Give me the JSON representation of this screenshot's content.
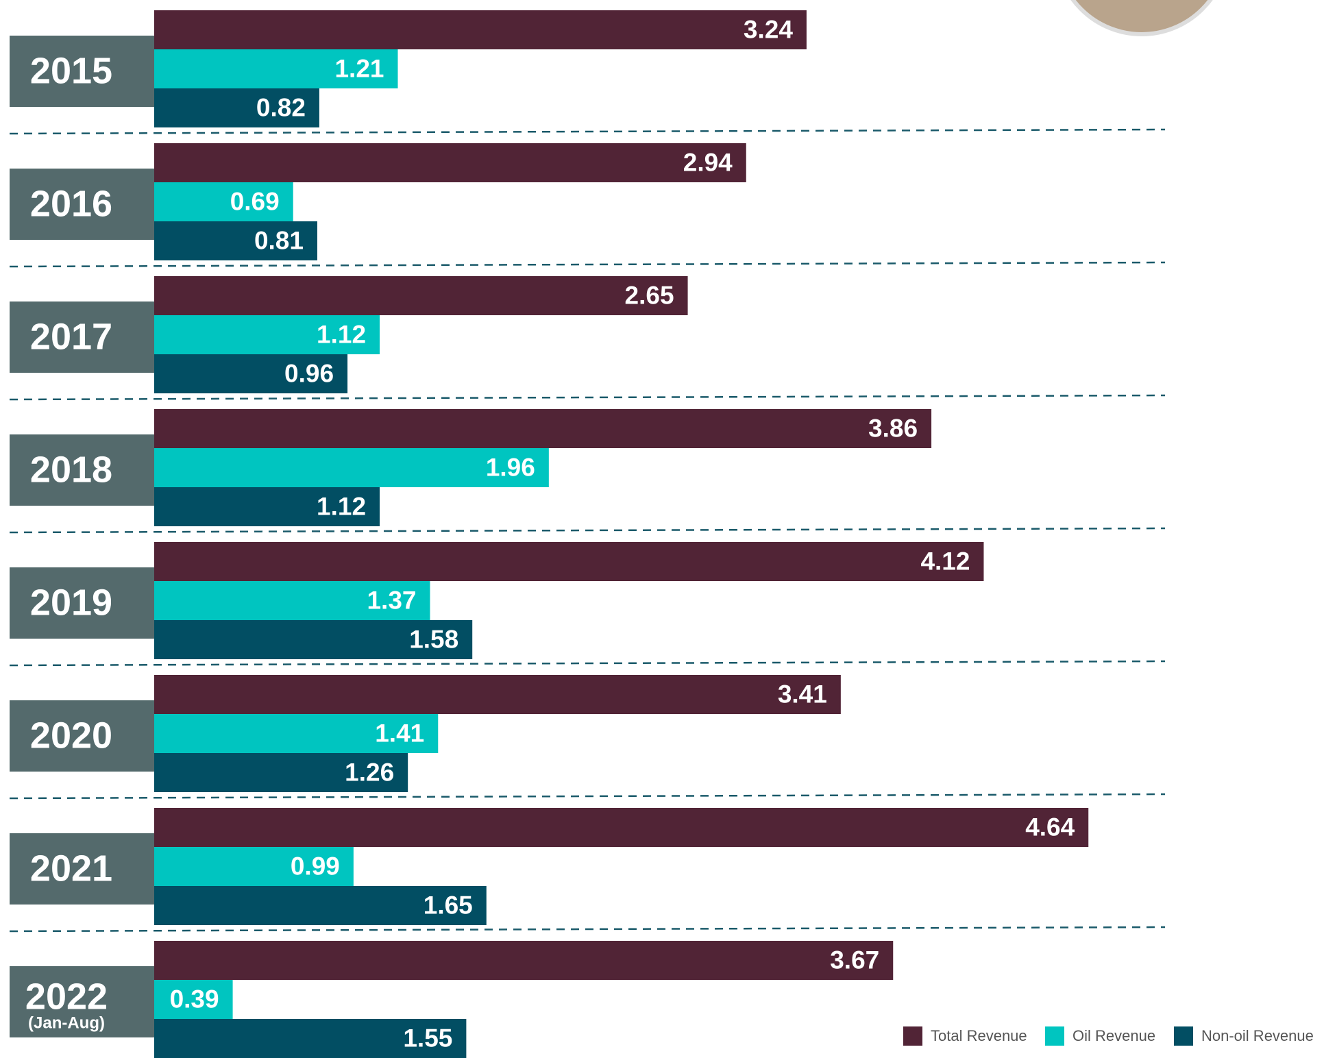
{
  "chart_data": {
    "type": "hbar",
    "categories": [
      "2015",
      "2016",
      "2017",
      "2018",
      "2019",
      "2020",
      "2021",
      "2022"
    ],
    "annotations": [
      "(Jan-Aug)"
    ],
    "series": [
      {
        "name": "Total Revenue",
        "color": "#512436",
        "values": [
          3.24,
          2.94,
          2.65,
          3.86,
          4.12,
          3.41,
          4.64,
          3.67
        ]
      },
      {
        "name": "Oil Revenue",
        "color": "#00c5c0",
        "values": [
          1.21,
          0.69,
          1.12,
          1.96,
          1.37,
          1.41,
          0.99,
          0.39
        ]
      },
      {
        "name": "Non-oil Revenue",
        "color": "#024e63",
        "values": [
          0.82,
          0.81,
          0.96,
          1.12,
          1.58,
          1.26,
          1.65,
          1.55
        ]
      }
    ],
    "xlim": [
      0,
      5
    ],
    "legend": "bottom-right"
  }
}
